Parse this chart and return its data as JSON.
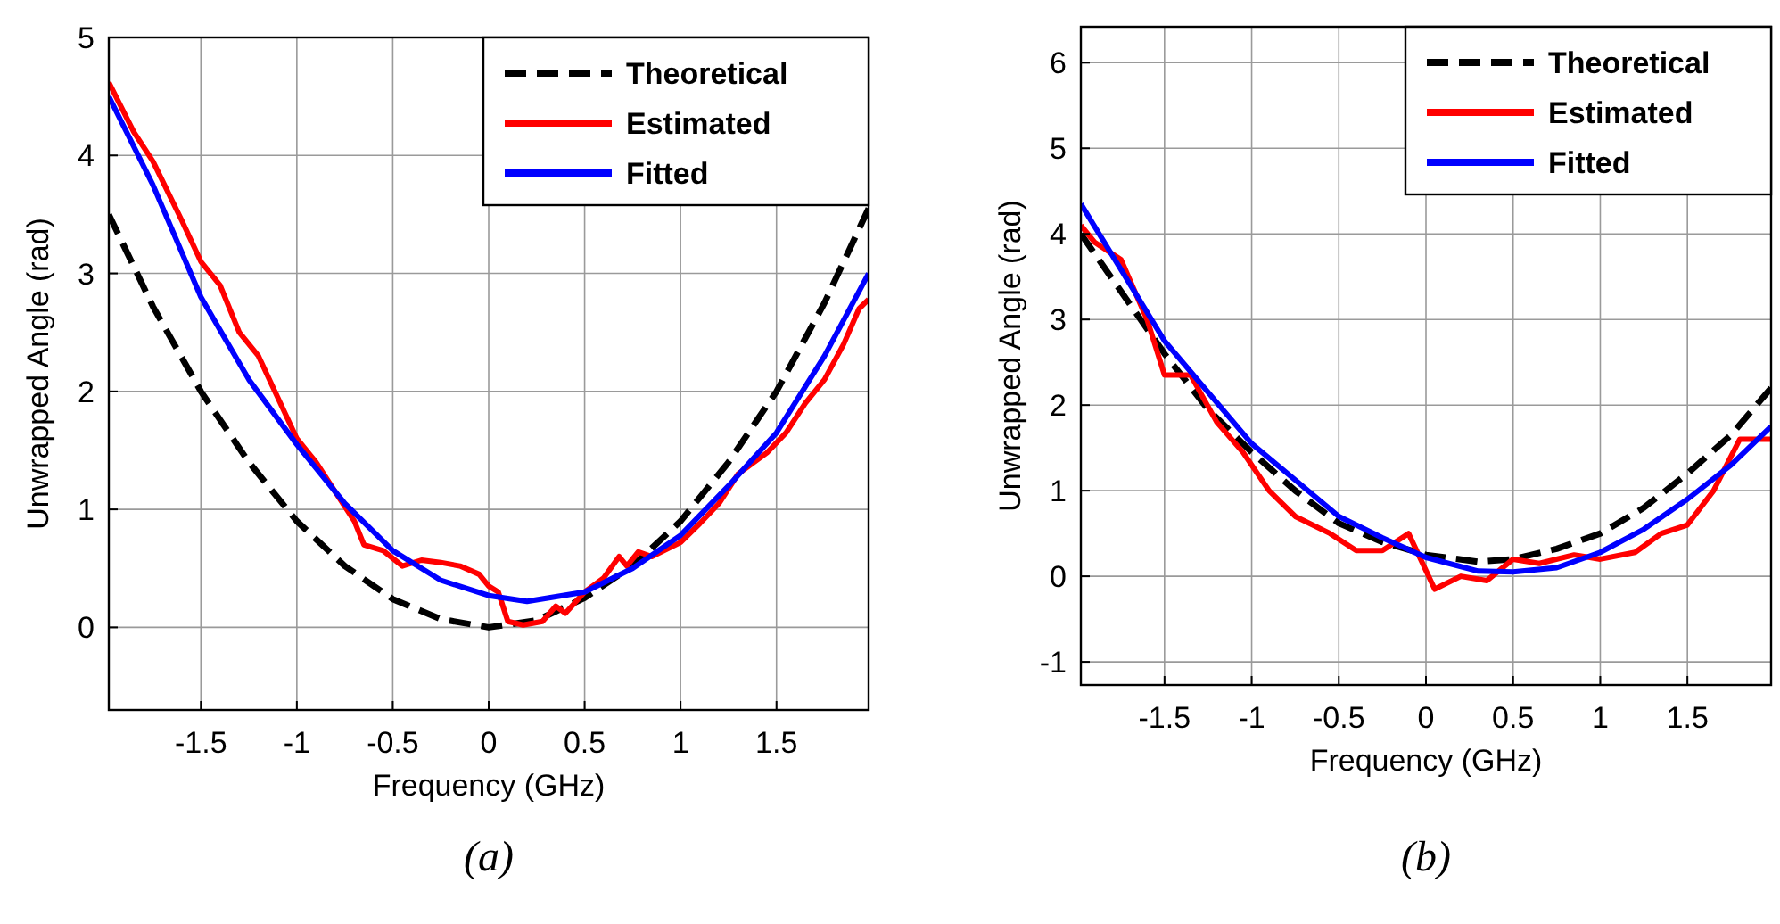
{
  "chart_data": [
    {
      "type": "line",
      "xlabel": "Frequency (GHz)",
      "ylabel": "Unwrapped Angle (rad)",
      "xlim": [
        -1.98,
        1.98
      ],
      "ylim": [
        -0.7,
        5
      ],
      "xticks": [
        -1.5,
        -1,
        -0.5,
        0,
        0.5,
        1,
        1.5
      ],
      "yticks": [
        0,
        1,
        2,
        3,
        4,
        5
      ],
      "grid": true,
      "legend": "top right",
      "annotations": [
        "(a)"
      ],
      "series": [
        {
          "name": "Theoretical",
          "color": "#000000",
          "line_style": "dashed",
          "x": [
            -1.98,
            -1.75,
            -1.5,
            -1.25,
            -1,
            -0.75,
            -0.5,
            -0.25,
            0,
            0.25,
            0.5,
            0.75,
            1,
            1.25,
            1.5,
            1.75,
            1.98
          ],
          "values": [
            3.5,
            2.72,
            2.0,
            1.4,
            0.9,
            0.52,
            0.24,
            0.07,
            0,
            0.06,
            0.25,
            0.52,
            0.9,
            1.4,
            2.0,
            2.75,
            3.55
          ]
        },
        {
          "name": "Estimated",
          "color": "#ff0000",
          "line_style": "solid",
          "x": [
            -1.98,
            -1.85,
            -1.75,
            -1.6,
            -1.5,
            -1.4,
            -1.3,
            -1.2,
            -1.1,
            -1,
            -0.9,
            -0.8,
            -0.7,
            -0.65,
            -0.55,
            -0.45,
            -0.35,
            -0.25,
            -0.15,
            -0.05,
            0,
            0.05,
            0.1,
            0.18,
            0.28,
            0.35,
            0.4,
            0.5,
            0.6,
            0.68,
            0.72,
            0.78,
            0.85,
            1,
            1.1,
            1.2,
            1.3,
            1.45,
            1.55,
            1.65,
            1.75,
            1.85,
            1.93,
            1.98
          ],
          "values": [
            4.62,
            4.2,
            3.95,
            3.45,
            3.1,
            2.9,
            2.5,
            2.3,
            1.95,
            1.6,
            1.4,
            1.15,
            0.9,
            0.7,
            0.65,
            0.52,
            0.57,
            0.55,
            0.52,
            0.45,
            0.35,
            0.3,
            0.05,
            0.02,
            0.05,
            0.18,
            0.12,
            0.3,
            0.42,
            0.6,
            0.52,
            0.64,
            0.6,
            0.72,
            0.88,
            1.05,
            1.3,
            1.48,
            1.65,
            1.9,
            2.1,
            2.4,
            2.7,
            2.78
          ]
        },
        {
          "name": "Fitted",
          "color": "#0000ff",
          "line_style": "solid",
          "x": [
            -1.98,
            -1.75,
            -1.5,
            -1.25,
            -1,
            -0.75,
            -0.5,
            -0.25,
            0,
            0.2,
            0.5,
            0.75,
            1,
            1.25,
            1.5,
            1.75,
            1.98
          ],
          "values": [
            4.5,
            3.75,
            2.8,
            2.1,
            1.55,
            1.05,
            0.65,
            0.4,
            0.27,
            0.22,
            0.3,
            0.5,
            0.78,
            1.2,
            1.65,
            2.3,
            3.0
          ]
        }
      ]
    },
    {
      "type": "line",
      "xlabel": "Frequency (GHz)",
      "ylabel": "Unwrapped Angle (rad)",
      "xlim": [
        -1.98,
        1.98
      ],
      "ylim": [
        -1.27,
        6.42
      ],
      "xticks": [
        -1.5,
        -1,
        -0.5,
        0,
        0.5,
        1,
        1.5
      ],
      "yticks": [
        -1,
        0,
        1,
        2,
        3,
        4,
        5,
        6
      ],
      "grid": true,
      "legend": "top right",
      "annotations": [
        "(b)"
      ],
      "series": [
        {
          "name": "Theoretical",
          "color": "#000000",
          "line_style": "dashed",
          "x": [
            -1.98,
            -1.5,
            -1.25,
            -1,
            -0.75,
            -0.5,
            -0.25,
            0,
            0.3,
            0.5,
            0.75,
            1,
            1.25,
            1.5,
            1.75,
            1.98
          ],
          "values": [
            4.0,
            2.6,
            1.95,
            1.45,
            1.0,
            0.62,
            0.4,
            0.25,
            0.17,
            0.2,
            0.32,
            0.5,
            0.8,
            1.2,
            1.65,
            2.2
          ]
        },
        {
          "name": "Estimated",
          "color": "#ff0000",
          "line_style": "solid",
          "x": [
            -1.98,
            -1.9,
            -1.75,
            -1.6,
            -1.5,
            -1.35,
            -1.2,
            -1.05,
            -0.9,
            -0.75,
            -0.55,
            -0.4,
            -0.25,
            -0.1,
            0.05,
            0.2,
            0.35,
            0.5,
            0.65,
            0.85,
            1,
            1.2,
            1.35,
            1.5,
            1.65,
            1.8,
            1.98
          ],
          "values": [
            4.1,
            3.9,
            3.7,
            3.0,
            2.35,
            2.35,
            1.8,
            1.45,
            1.0,
            0.7,
            0.5,
            0.3,
            0.3,
            0.5,
            -0.15,
            0.0,
            -0.05,
            0.2,
            0.15,
            0.25,
            0.2,
            0.28,
            0.5,
            0.6,
            1.0,
            1.6,
            1.6
          ]
        },
        {
          "name": "Fitted",
          "color": "#0000ff",
          "line_style": "solid",
          "x": [
            -1.98,
            -1.5,
            -1,
            -0.5,
            -0.25,
            0,
            0.3,
            0.5,
            0.75,
            1,
            1.25,
            1.5,
            1.75,
            1.98
          ],
          "values": [
            4.35,
            2.75,
            1.55,
            0.7,
            0.45,
            0.22,
            0.06,
            0.05,
            0.1,
            0.28,
            0.55,
            0.9,
            1.3,
            1.75
          ]
        }
      ]
    }
  ]
}
